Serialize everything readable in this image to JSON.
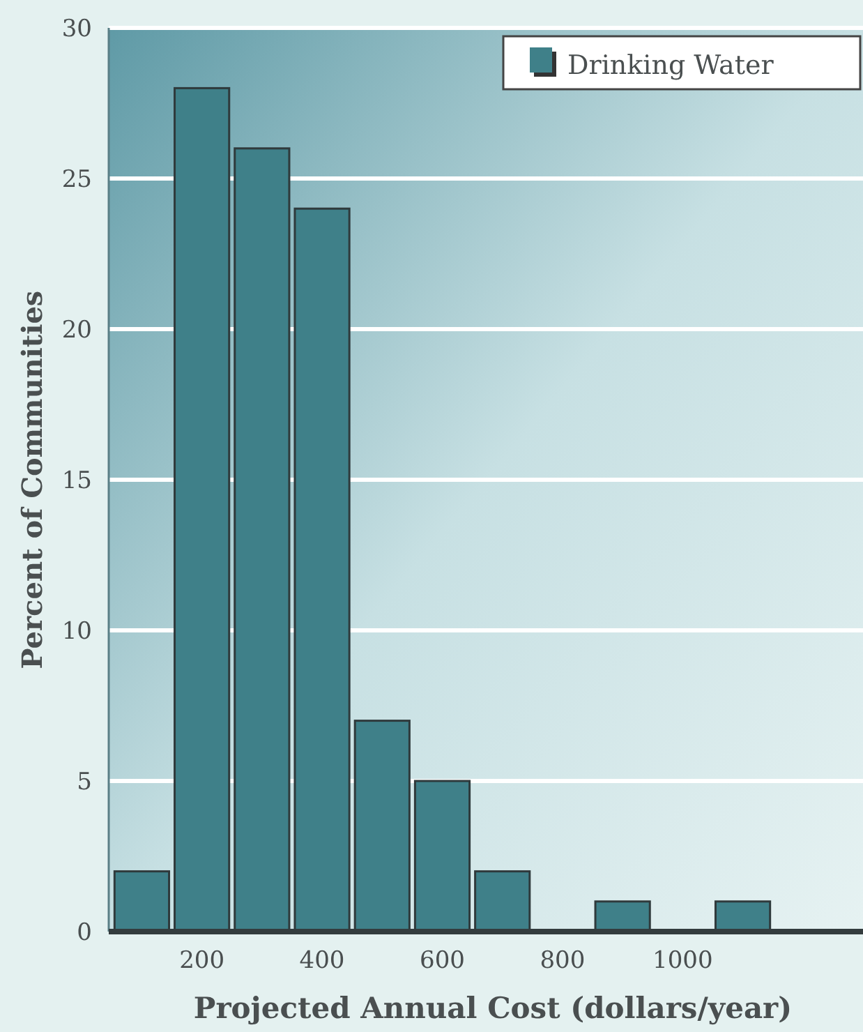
{
  "chart_data": {
    "type": "histogram",
    "xlabel": "Projected Annual Cost (dollars/year)",
    "ylabel": "Percent of Communities",
    "bins": [
      50,
      150,
      250,
      350,
      450,
      550,
      650,
      750,
      850,
      950,
      1050,
      1150
    ],
    "series": [
      {
        "name": "Drinking Water",
        "color": "#3f8089",
        "values": [
          2,
          28,
          26,
          24,
          7,
          5,
          2,
          0,
          1,
          0,
          1
        ]
      }
    ],
    "xlim": [
      45,
      1300
    ],
    "xticks": [
      200,
      400,
      600,
      800,
      1000
    ],
    "ylim": [
      0,
      30
    ],
    "yticks": [
      0,
      5,
      10,
      15,
      20,
      25,
      30
    ],
    "grid": "y",
    "legend": "top right"
  }
}
